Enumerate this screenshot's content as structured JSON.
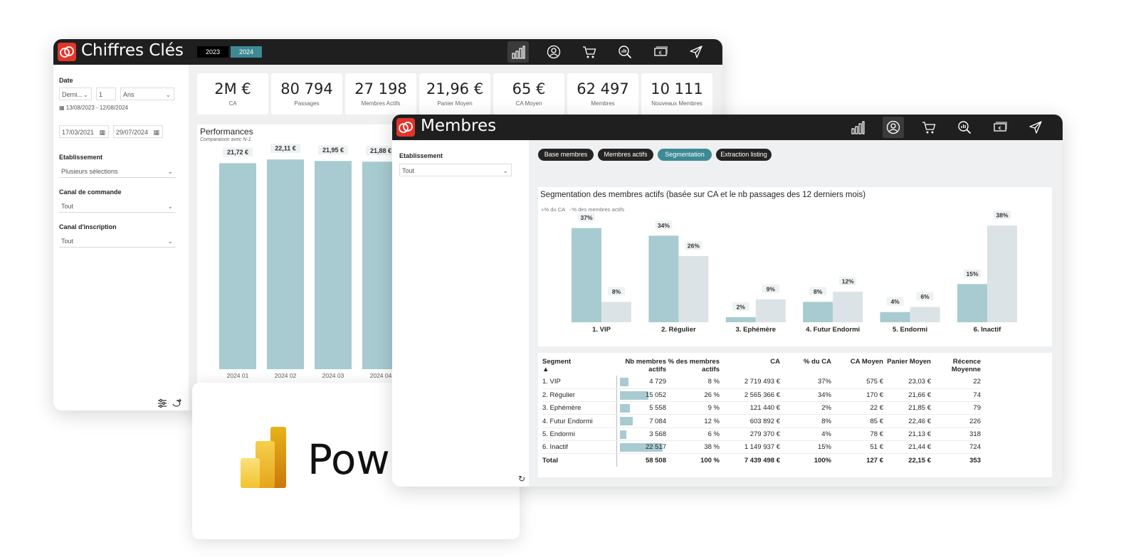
{
  "win1": {
    "title": "Chiffres Clés",
    "years": [
      {
        "label": "2023",
        "color": "#000000"
      },
      {
        "label": "2024",
        "color": "#3e8a94"
      }
    ],
    "nav_icons": [
      "bar-chart-icon",
      "user-icon",
      "cart-icon",
      "zoom-icon",
      "banknote-icon",
      "send-icon"
    ],
    "active_nav": 0,
    "filters": {
      "date_label": "Date",
      "relative_mode": "Derni...",
      "relative_n": "1",
      "relative_unit": "Ans",
      "date_range": "13/08/2023 - 12/08/2024",
      "start_date": "17/03/2021",
      "end_date": "29/07/2024",
      "etab_label": "Etablissement",
      "etab_value": "Plusieurs sélections",
      "canal_cmd_label": "Canal de commande",
      "canal_cmd_value": "Tout",
      "canal_ins_label": "Canal d'inscription",
      "canal_ins_value": "Tout"
    },
    "kpis": [
      {
        "value": "2M €",
        "label": "CA"
      },
      {
        "value": "80 794",
        "label": "Passages"
      },
      {
        "value": "27 198",
        "label": "Membres Actifs"
      },
      {
        "value": "21,96 €",
        "label": "Panier Moyen"
      },
      {
        "value": "65 €",
        "label": "CA Moyen"
      },
      {
        "value": "62 497",
        "label": "Membres"
      },
      {
        "value": "10 111",
        "label": "Nouveaux Membres"
      }
    ]
  },
  "perf_chart": {
    "type": "bar",
    "title": "Performances",
    "subtitle": "Comparaison avec N-1",
    "categories": [
      "2024 01",
      "2024 02",
      "2024 03",
      "2024 04"
    ],
    "values": [
      21.72,
      22.11,
      21.95,
      21.88
    ],
    "value_labels": [
      "21,72 €",
      "22,11 €",
      "21,95 €",
      "21,88 €"
    ],
    "ylim": [
      0,
      22.5
    ],
    "color": "#a7cbd0"
  },
  "powerbi": {
    "brand": "Power BI"
  },
  "win2": {
    "title": "Membres",
    "nav_icons": [
      "bar-chart-icon",
      "user-icon",
      "cart-icon",
      "zoom-icon",
      "banknote-icon",
      "send-icon"
    ],
    "active_nav": 1,
    "etab_label": "Etablissement",
    "etab_value": "Tout",
    "tabs": [
      {
        "label": "Base membres",
        "active": false
      },
      {
        "label": "Membres actifs",
        "active": false
      },
      {
        "label": "Segmentation",
        "active": true
      },
      {
        "label": "Extraction listing",
        "active": false
      }
    ]
  },
  "chart_data": {
    "type": "bar",
    "title": "Segmentation des membres actifs (basée sur CA et le nb passages des 12 derniers mois)",
    "categories": [
      "1. VIP",
      "2. Régulier",
      "3. Ephémère",
      "4. Futur Endormi",
      "5. Endormi",
      "6. Inactif"
    ],
    "series": [
      {
        "name": "% du CA",
        "values": [
          37,
          34,
          2,
          8,
          4,
          15
        ],
        "color": "#a7cbd0"
      },
      {
        "name": "% des membres actifs",
        "values": [
          8,
          26,
          9,
          12,
          6,
          38
        ],
        "color": "#dce3e6"
      }
    ],
    "ylim": [
      0,
      38
    ],
    "legend": "top-left",
    "unit": "%"
  },
  "seg_table": {
    "sort_indicator": "▲",
    "headers": [
      "Segment",
      "Nb membres actifs",
      "% des membres actifs",
      "CA",
      "% du CA",
      "CA Moyen",
      "Panier Moyen",
      "Récence Moyenne"
    ],
    "rows": [
      {
        "segment": "1. VIP",
        "nb": "4 729",
        "nb_value": 4729,
        "pct_membres": "8 %",
        "ca": "2 719 493 €",
        "pct_ca": "37%",
        "ca_moyen": "575 €",
        "panier": "23,03 €",
        "recence": "22"
      },
      {
        "segment": "2. Régulier",
        "nb": "15 052",
        "nb_value": 15052,
        "pct_membres": "26 %",
        "ca": "2 565 366 €",
        "pct_ca": "34%",
        "ca_moyen": "170 €",
        "panier": "21,66 €",
        "recence": "74"
      },
      {
        "segment": "3. Ephémère",
        "nb": "5 558",
        "nb_value": 5558,
        "pct_membres": "9 %",
        "ca": "121 440 €",
        "pct_ca": "2%",
        "ca_moyen": "22 €",
        "panier": "21,85 €",
        "recence": "79"
      },
      {
        "segment": "4. Futur Endormi",
        "nb": "7 084",
        "nb_value": 7084,
        "pct_membres": "12 %",
        "ca": "603 892 €",
        "pct_ca": "8%",
        "ca_moyen": "85 €",
        "panier": "22,46 €",
        "recence": "226"
      },
      {
        "segment": "5. Endormi",
        "nb": "3 568",
        "nb_value": 3568,
        "pct_membres": "6 %",
        "ca": "279 370 €",
        "pct_ca": "4%",
        "ca_moyen": "78 €",
        "panier": "21,13 €",
        "recence": "318"
      },
      {
        "segment": "6. Inactif",
        "nb": "22 517",
        "nb_value": 22517,
        "pct_membres": "38 %",
        "ca": "1 149 937 €",
        "pct_ca": "15%",
        "ca_moyen": "51 €",
        "panier": "21,44 €",
        "recence": "724"
      }
    ],
    "total": {
      "segment": "Total",
      "nb": "58 508",
      "pct_membres": "100 %",
      "ca": "7 439 498 €",
      "pct_ca": "100%",
      "ca_moyen": "127 €",
      "panier": "22,15 €",
      "recence": "353"
    }
  }
}
